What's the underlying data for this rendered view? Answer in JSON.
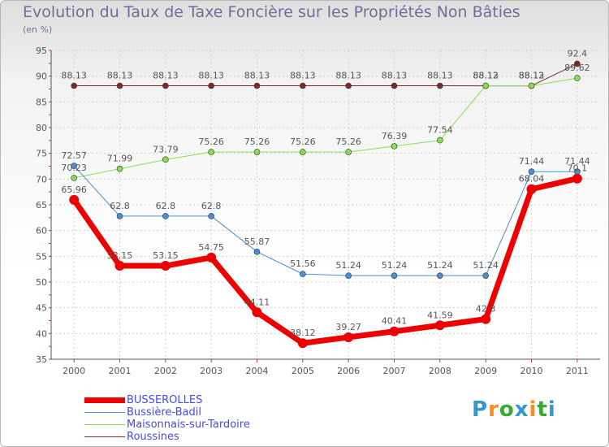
{
  "title": "Evolution du Taux de Taxe Foncière sur les Propriétés Non Bâties",
  "subtitle": "(en %)",
  "logo": {
    "letters": [
      "P",
      "r",
      "o",
      "x",
      "i",
      "t",
      "i"
    ],
    "colors": [
      "#3399cc",
      "#ff8c1a",
      "#33aa33",
      "#3399cc",
      "#ff8c1a",
      "#33aa33",
      "#3399cc"
    ]
  },
  "chart_data": {
    "type": "line",
    "title": "Evolution du Taux de Taxe Foncière sur les Propriétés Non Bâties",
    "ylabel": "(en %)",
    "xlabel": "",
    "ylim": [
      35,
      95
    ],
    "yticks": [
      "35",
      "40",
      "45",
      "50",
      "55",
      "60",
      "65",
      "70",
      "75",
      "80",
      "85",
      "90",
      "95"
    ],
    "categories": [
      "2000",
      "2001",
      "2002",
      "2003",
      "2004",
      "2005",
      "2006",
      "2007",
      "2008",
      "2009",
      "2010",
      "2011"
    ],
    "grid": true,
    "legend": "bottom-left",
    "series": [
      {
        "name": "Roussines",
        "color": "#7a2a2a",
        "width": 1,
        "values": [
          88.13,
          88.13,
          88.13,
          88.13,
          88.13,
          88.13,
          88.13,
          88.13,
          88.13,
          88.12,
          88.12,
          92.4
        ],
        "labels": [
          "88.13",
          "88.13",
          "88.13",
          "88.13",
          "88.13",
          "88.13",
          "88.13",
          "88.13",
          "88.13",
          "88.12",
          "88.12",
          "92.4"
        ]
      },
      {
        "name": "Maisonnais-sur-Tardoire",
        "color": "#88dd55",
        "width": 1,
        "values": [
          70.23,
          71.99,
          73.79,
          75.26,
          75.26,
          75.26,
          75.26,
          76.39,
          77.54,
          88.13,
          88.13,
          89.62
        ],
        "labels": [
          "70.23",
          "71.99",
          "73.79",
          "75.26",
          "75.26",
          "75.26",
          "75.26",
          "76.39",
          "77.54",
          "88.13",
          "88.13",
          "89.62"
        ]
      },
      {
        "name": "Bussière-Badil",
        "color": "#4a90d0",
        "width": 1,
        "values": [
          72.57,
          62.8,
          62.8,
          62.8,
          55.87,
          51.56,
          51.24,
          51.24,
          51.24,
          51.24,
          71.44,
          71.44
        ],
        "labels": [
          "72.57",
          "62.8",
          "62.8",
          "62.8",
          "55.87",
          "51.56",
          "51.24",
          "51.24",
          "51.24",
          "51.24",
          "71.44",
          "71.44"
        ]
      },
      {
        "name": "BUSSEROLLES",
        "color": "#ee0000",
        "width": 7,
        "values": [
          65.96,
          53.15,
          53.15,
          54.75,
          44.11,
          38.12,
          39.27,
          40.41,
          41.59,
          42.8,
          68.04,
          70.1
        ],
        "labels": [
          "65.96",
          "53.15",
          "53.15",
          "54.75",
          "44.11",
          "38.12",
          "39.27",
          "40.41",
          "41.59",
          "42.8",
          "68.04",
          "70.1"
        ]
      }
    ]
  },
  "legend": {
    "items": [
      "BUSSEROLLES",
      "Bussière-Badil",
      "Maisonnais-sur-Tardoire",
      "Roussines"
    ],
    "colors": [
      "#ee0000",
      "#4a90d0",
      "#88dd55",
      "#7a2a2a"
    ],
    "widths": [
      7,
      1,
      1,
      1
    ]
  }
}
